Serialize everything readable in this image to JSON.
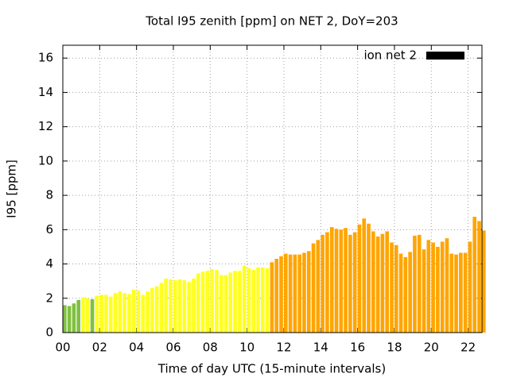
{
  "chart_data": {
    "type": "bar",
    "title": "Total I95 zenith [ppm] on NET 2, DoY=203",
    "xlabel": "Time of day UTC (15-minute intervals)",
    "ylabel": "I95 [ppm]",
    "series": [
      {
        "name": "ion net 2",
        "color": "#000000",
        "x": [
          0,
          0.25,
          0.5,
          0.75,
          1,
          1.25,
          1.5,
          1.75,
          2,
          2.25,
          2.5,
          2.75,
          3,
          3.25,
          3.5,
          3.75,
          4,
          4.25,
          4.5,
          4.75,
          5,
          5.25,
          5.5,
          5.75,
          6,
          6.25,
          6.5,
          6.75,
          7,
          7.25,
          7.5,
          7.75,
          8,
          8.25,
          8.5,
          8.75,
          9,
          9.25,
          9.5,
          9.75,
          10,
          10.25,
          10.5,
          10.75,
          11,
          11.25,
          11.5,
          11.75,
          12,
          12.25,
          12.5,
          12.75,
          13,
          13.25,
          13.5,
          13.75,
          14,
          14.25,
          14.5,
          14.75,
          15,
          15.25,
          15.5,
          15.75,
          16,
          16.25,
          16.5,
          16.75,
          17,
          17.25,
          17.5,
          17.75,
          18,
          18.25,
          18.5,
          18.75,
          19,
          19.25,
          19.5,
          19.75,
          20,
          20.25,
          20.5,
          20.75,
          21,
          21.25,
          21.5,
          21.75,
          22,
          22.25,
          22.5,
          22.75
        ],
        "values": [
          1.6,
          1.55,
          1.7,
          1.9,
          2.05,
          2.0,
          1.95,
          2.15,
          2.2,
          2.2,
          2.1,
          2.3,
          2.4,
          2.3,
          2.25,
          2.5,
          2.45,
          2.2,
          2.4,
          2.6,
          2.7,
          2.9,
          3.15,
          3.1,
          3.05,
          3.1,
          3.05,
          2.95,
          3.15,
          3.45,
          3.55,
          3.6,
          3.7,
          3.65,
          3.35,
          3.35,
          3.5,
          3.6,
          3.6,
          3.9,
          3.75,
          3.65,
          3.8,
          3.8,
          3.75,
          4.1,
          4.3,
          4.45,
          4.6,
          4.55,
          4.55,
          4.55,
          4.65,
          4.75,
          5.2,
          5.4,
          5.7,
          5.85,
          6.15,
          6.05,
          6.0,
          6.1,
          5.7,
          5.85,
          6.3,
          6.65,
          6.35,
          5.9,
          5.6,
          5.75,
          5.9,
          5.25,
          5.1,
          4.6,
          4.4,
          4.7,
          5.65,
          5.7,
          4.85,
          5.4,
          5.25,
          5.0,
          5.3,
          5.5,
          4.6,
          4.55,
          4.65,
          4.65,
          5.3,
          6.75,
          6.5,
          5.95
        ],
        "colors": [
          "#80c040",
          "#80c040",
          "#80c040",
          "#80c040",
          "#ffff22",
          "#ffff22",
          "#80c040",
          "#ffff22",
          "#ffff22",
          "#ffff22",
          "#ffff22",
          "#ffff22",
          "#ffff22",
          "#ffff22",
          "#ffff22",
          "#ffff22",
          "#ffff22",
          "#ffff22",
          "#ffff22",
          "#ffff22",
          "#ffff22",
          "#ffff22",
          "#ffff22",
          "#ffff22",
          "#ffff22",
          "#ffff22",
          "#ffff22",
          "#ffff22",
          "#ffff22",
          "#ffff22",
          "#ffff22",
          "#ffff22",
          "#ffff22",
          "#ffff22",
          "#ffff22",
          "#ffff22",
          "#ffff22",
          "#ffff22",
          "#ffff22",
          "#ffff22",
          "#ffff22",
          "#ffff22",
          "#ffff22",
          "#ffff22",
          "#ffff22",
          "#ffa500",
          "#ffa500",
          "#ffa500",
          "#ffa500",
          "#ffa500",
          "#ffa500",
          "#ffa500",
          "#ffa500",
          "#ffa500",
          "#ffa500",
          "#ffa500",
          "#ffa500",
          "#ffa500",
          "#ffa500",
          "#ffa500",
          "#ffa500",
          "#ffa500",
          "#ffa500",
          "#ffa500",
          "#ffa500",
          "#ffa500",
          "#ffa500",
          "#ffa500",
          "#ffa500",
          "#ffa500",
          "#ffa500",
          "#ffa500",
          "#ffa500",
          "#ffa500",
          "#ffa500",
          "#ffa500",
          "#ffa500",
          "#ffa500",
          "#ffa500",
          "#ffa500",
          "#ffa500",
          "#ffa500",
          "#ffa500",
          "#ffa500",
          "#ffa500",
          "#ffa500",
          "#ffa500",
          "#ffa500",
          "#ffa500",
          "#ffa500",
          "#ffa500",
          "#ffa500"
        ]
      }
    ],
    "bar_width": 0.2,
    "xlim": [
      0,
      22.75
    ],
    "xticks": [
      {
        "value": 0,
        "label": "00"
      },
      {
        "value": 2,
        "label": "02"
      },
      {
        "value": 4,
        "label": "04"
      },
      {
        "value": 6,
        "label": "06"
      },
      {
        "value": 8,
        "label": "08"
      },
      10,
      12,
      14,
      16,
      18,
      20,
      22
    ],
    "ylim": [
      0,
      16.75
    ],
    "yticks": [
      0,
      2,
      4,
      6,
      8,
      10,
      12,
      14,
      16
    ],
    "grid": true,
    "legend": "upper right"
  }
}
